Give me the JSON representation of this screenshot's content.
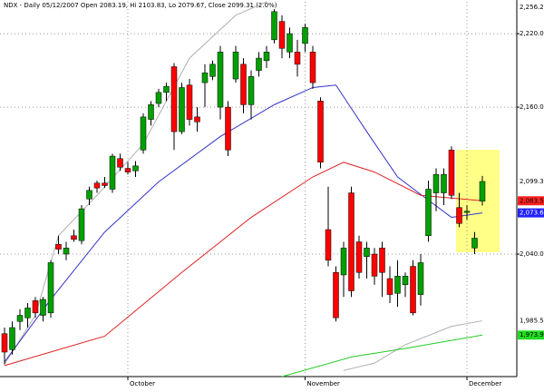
{
  "chart_data": {
    "type": "candlestick",
    "title": "NDX - Daily 05/12/2007 Open 2083.19, Hi 2103.83, Lo 2079.67, Close 2099.31 (2.0%)",
    "categories": [
      null,
      null,
      null,
      null,
      null,
      null,
      null,
      null,
      null,
      null,
      null,
      null,
      null,
      null,
      null,
      null,
      "October",
      null,
      null,
      null,
      null,
      null,
      null,
      null,
      null,
      null,
      null,
      null,
      null,
      null,
      null,
      null,
      null,
      null,
      null,
      null,
      null,
      null,
      null,
      "November",
      null,
      null,
      null,
      null,
      null,
      null,
      null,
      null,
      null,
      null,
      null,
      null,
      null,
      null,
      null,
      null,
      null,
      null,
      null,
      null,
      "December",
      null,
      null
    ],
    "open": [
      1975,
      1962,
      1985,
      1988,
      2002,
      1990,
      1992,
      2048,
      2040,
      2055,
      2051,
      2085,
      2098,
      2098,
      2093,
      2118,
      2110,
      2108,
      2125,
      2150,
      2163,
      2172,
      2193,
      2140,
      2178,
      2152,
      2180,
      2185,
      2160,
      2160,
      2183,
      2195,
      2162,
      2190,
      2198,
      2215,
      2230,
      2205,
      2205,
      2212,
      2205,
      2165,
      2060,
      2025,
      2023,
      2090,
      2050,
      2038,
      2040,
      2045,
      2020,
      2008,
      2015,
      2030,
      2007,
      2055,
      2090,
      2090,
      2125,
      2078,
      2074,
      2045,
      2083.19
    ],
    "high": [
      1980,
      1985,
      1995,
      2000,
      2005,
      2005,
      2035,
      2055,
      2050,
      2060,
      2080,
      2095,
      2100,
      2103,
      2122,
      2122,
      2115,
      2116,
      2155,
      2165,
      2175,
      2180,
      2196,
      2180,
      2183,
      2160,
      2195,
      2198,
      2210,
      2165,
      2210,
      2200,
      2190,
      2205,
      2210,
      2240,
      2235,
      2225,
      2215,
      2228,
      2210,
      2168,
      2095,
      2030,
      2050,
      2095,
      2055,
      2050,
      2045,
      2050,
      2030,
      2035,
      2025,
      2035,
      2040,
      2100,
      2110,
      2110,
      2128,
      2090,
      2080,
      2058,
      2103.83
    ],
    "low": [
      1950,
      1958,
      1978,
      1980,
      1988,
      1985,
      1988,
      2040,
      2035,
      2050,
      2048,
      2080,
      2090,
      2094,
      2090,
      2108,
      2105,
      2103,
      2122,
      2145,
      2160,
      2165,
      2125,
      2138,
      2145,
      2140,
      2160,
      2182,
      2150,
      2120,
      2180,
      2155,
      2150,
      2185,
      2192,
      2212,
      2200,
      2200,
      2185,
      2205,
      2175,
      2110,
      2030,
      1985,
      2005,
      2005,
      2020,
      2020,
      2015,
      2005,
      2000,
      1997,
      2005,
      1990,
      1998,
      2050,
      2075,
      2080,
      2085,
      2062,
      2068,
      2040,
      2079.67
    ],
    "close": [
      1960,
      1980,
      1990,
      1996,
      1992,
      2003,
      2033,
      2044,
      2045,
      2052,
      2077,
      2092,
      2094,
      2096,
      2120,
      2111,
      2107,
      2112,
      2152,
      2162,
      2172,
      2177,
      2140,
      2176,
      2150,
      2148,
      2188,
      2195,
      2205,
      2125,
      2205,
      2162,
      2185,
      2200,
      2205,
      2238,
      2208,
      2220,
      2195,
      2225,
      2180,
      2115,
      2035,
      1988,
      2045,
      2010,
      2025,
      2045,
      2022,
      2025,
      2007,
      2022,
      2022,
      1992,
      2033,
      2093,
      2105,
      2105,
      2088,
      2065,
      2075,
      2053,
      2099.31
    ],
    "up_color": "#00a000",
    "down_color": "#ff0000",
    "lines": [
      {
        "color": "#b0b0b0",
        "x": [
          0,
          4,
          7,
          12,
          18,
          24,
          30,
          34
        ],
        "values": [
          1950,
          1990,
          2055,
          2088,
          2130,
          2200,
          2235,
          2246
        ]
      },
      {
        "color": "#b0b0b0",
        "x": [
          44,
          48,
          52,
          58,
          62
        ],
        "values": [
          1945,
          1951,
          1966,
          1981,
          1985.52
        ]
      },
      {
        "color": "#3333cc",
        "x": [
          0,
          6,
          13,
          20,
          28,
          35,
          40,
          43,
          47,
          51,
          55,
          58,
          62
        ],
        "values": [
          1952,
          2003,
          2058,
          2099,
          2136,
          2162,
          2176,
          2178,
          2140,
          2103,
          2084,
          2070,
          2073.66
        ]
      },
      {
        "color": "#dd2222",
        "x": [
          0,
          13,
          23,
          32,
          40,
          44,
          48,
          54,
          62
        ],
        "values": [
          1949,
          1973,
          2025,
          2070,
          2103,
          2115,
          2107,
          2088,
          2083.53
        ]
      },
      {
        "color": "#22cc22",
        "x": [
          36,
          45,
          52,
          62
        ],
        "values": [
          1940,
          1956,
          1963,
          1973.9
        ]
      }
    ],
    "side_labels": [
      {
        "value": 2256.23,
        "label": "2,256.23",
        "color": "#000000",
        "bg": "#ffffff"
      },
      {
        "value": 2099.31,
        "label": "2,099.31",
        "color": "#000000",
        "bg": "#ffffff"
      },
      {
        "value": 2083.53,
        "label": "2,083.53",
        "color": "#000000",
        "bg": "#ff2020"
      },
      {
        "value": 2073.66,
        "label": "2,073.66",
        "color": "#ffffff",
        "bg": "#2020ff"
      },
      {
        "value": 1985.52,
        "label": "1,985.52",
        "color": "#000000",
        "bg": "#ffffff"
      },
      {
        "value": 1973.9,
        "label": "1,973.9",
        "color": "#000000",
        "bg": "#22dd22"
      }
    ],
    "ylim": [
      1940,
      2246
    ],
    "yticks": [
      {
        "value": 2040,
        "label": "2,040.00"
      },
      {
        "value": 2160,
        "label": "2,160.00"
      },
      {
        "value": 2220,
        "label": "2,220.00"
      }
    ],
    "grid": true
  }
}
